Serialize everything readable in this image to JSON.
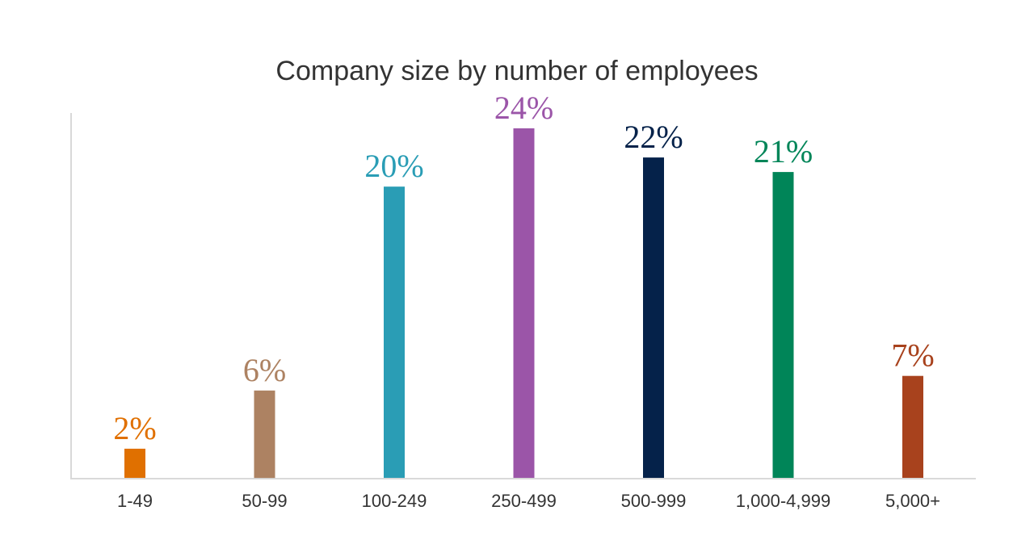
{
  "chart_data": {
    "type": "bar",
    "title": "Company size by number of employees",
    "xlabel": "",
    "ylabel": "",
    "categories": [
      "1-49",
      "50-99",
      "100-249",
      "250-499",
      "500-999",
      "1,000-4,999",
      "5,000+"
    ],
    "values": [
      2,
      6,
      20,
      24,
      22,
      21,
      7
    ],
    "data_labels": [
      "2%",
      "6%",
      "20%",
      "24%",
      "22%",
      "21%",
      "7%"
    ],
    "colors": [
      "#E07000",
      "#AD8262",
      "#2A9DB5",
      "#9B55A8",
      "#05224A",
      "#008558",
      "#A8421D"
    ],
    "ylim": [
      0,
      24
    ],
    "grid": false,
    "legend": "none",
    "axis_color": "#D9D9D9"
  }
}
